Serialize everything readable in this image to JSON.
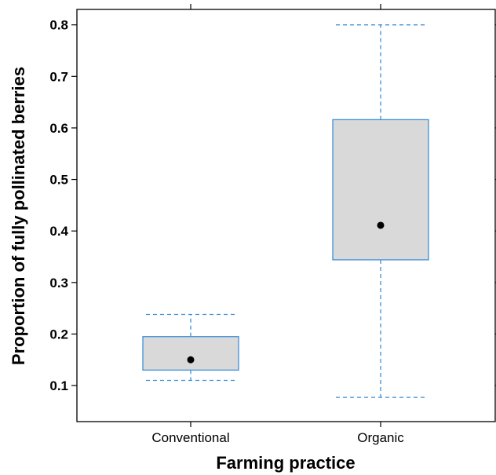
{
  "chart_data": {
    "type": "boxplot",
    "title": "",
    "xlabel": "Farming practice",
    "ylabel": "Proportion of fully pollinated berries",
    "categories": [
      "Conventional",
      "Organic"
    ],
    "boxes": [
      {
        "category": "Conventional",
        "whisker_low": 0.11,
        "q1": 0.13,
        "median": 0.15,
        "q3": 0.195,
        "whisker_high": 0.238
      },
      {
        "category": "Organic",
        "whisker_low": 0.077,
        "q1": 0.344,
        "median": 0.411,
        "q3": 0.616,
        "whisker_high": 0.8
      }
    ],
    "ylim": [
      0.03,
      0.83
    ],
    "yticks": [
      "0.1",
      "0.2",
      "0.3",
      "0.4",
      "0.5",
      "0.6",
      "0.7",
      "0.8"
    ],
    "grid": false,
    "colors": {
      "box_fill": "#d9d9d9",
      "box_border": "#3d8fd9",
      "whisker": "#3d8fd9",
      "median_marker": "#000000",
      "frame": "#000000"
    }
  }
}
